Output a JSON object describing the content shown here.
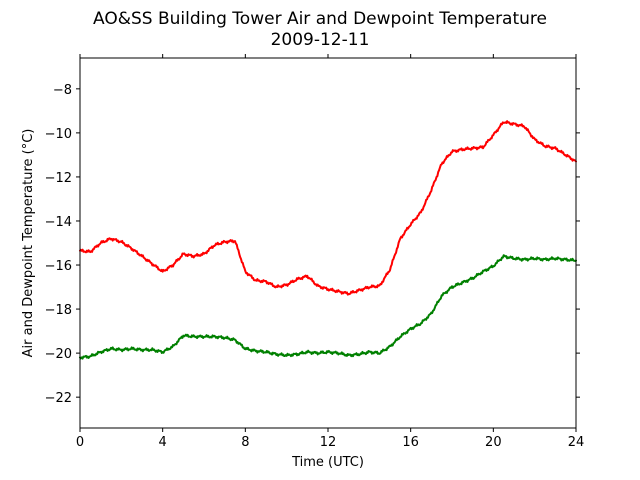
{
  "chart_data": {
    "type": "line",
    "title": "AO&SS Building Tower Air and Dewpoint Temperature",
    "subtitle": "2009-12-11",
    "xlabel": "Time (UTC)",
    "ylabel": "Air and Dewpoint Temperature (°C)",
    "xlim": [
      0,
      24
    ],
    "ylim": [
      -23.4,
      -6.6
    ],
    "xticks": [
      0,
      4,
      8,
      12,
      16,
      20,
      24
    ],
    "xtick_labels": [
      "0",
      "4",
      "8",
      "12",
      "16",
      "20",
      "24"
    ],
    "yticks": [
      -22,
      -20,
      -18,
      -16,
      -14,
      -12,
      -10,
      -8
    ],
    "ytick_labels": [
      "−22",
      "−20",
      "−18",
      "−16",
      "−14",
      "−12",
      "−10",
      "−8"
    ],
    "grid": false,
    "series": [
      {
        "color": "#ff0000",
        "points": [
          [
            0,
            -15.35
          ],
          [
            0.5,
            -15.4
          ],
          [
            1,
            -15.0
          ],
          [
            1.5,
            -14.8
          ],
          [
            2,
            -14.95
          ],
          [
            2.5,
            -15.25
          ],
          [
            3,
            -15.6
          ],
          [
            3.5,
            -15.95
          ],
          [
            4,
            -16.3
          ],
          [
            4.5,
            -16.0
          ],
          [
            5,
            -15.5
          ],
          [
            5.5,
            -15.6
          ],
          [
            6,
            -15.5
          ],
          [
            6.5,
            -15.1
          ],
          [
            7,
            -14.95
          ],
          [
            7.5,
            -14.9
          ],
          [
            8,
            -16.3
          ],
          [
            8.5,
            -16.7
          ],
          [
            9,
            -16.75
          ],
          [
            9.5,
            -17.0
          ],
          [
            10,
            -16.9
          ],
          [
            10.5,
            -16.65
          ],
          [
            11,
            -16.5
          ],
          [
            11.5,
            -16.95
          ],
          [
            12,
            -17.1
          ],
          [
            12.5,
            -17.2
          ],
          [
            13,
            -17.3
          ],
          [
            13.5,
            -17.15
          ],
          [
            14,
            -17.0
          ],
          [
            14.5,
            -16.95
          ],
          [
            15,
            -16.2
          ],
          [
            15.5,
            -14.8
          ],
          [
            16,
            -14.15
          ],
          [
            16.5,
            -13.6
          ],
          [
            17,
            -12.6
          ],
          [
            17.5,
            -11.4
          ],
          [
            18,
            -10.85
          ],
          [
            18.5,
            -10.75
          ],
          [
            19,
            -10.7
          ],
          [
            19.5,
            -10.65
          ],
          [
            20,
            -10.1
          ],
          [
            20.5,
            -9.5
          ],
          [
            21,
            -9.6
          ],
          [
            21.5,
            -9.7
          ],
          [
            22,
            -10.3
          ],
          [
            22.5,
            -10.6
          ],
          [
            23,
            -10.7
          ],
          [
            23.5,
            -11.0
          ],
          [
            24,
            -11.3
          ]
        ]
      },
      {
        "color": "#008000",
        "points": [
          [
            0,
            -20.2
          ],
          [
            0.5,
            -20.15
          ],
          [
            1,
            -19.95
          ],
          [
            1.5,
            -19.8
          ],
          [
            2,
            -19.85
          ],
          [
            2.5,
            -19.8
          ],
          [
            3,
            -19.85
          ],
          [
            3.5,
            -19.85
          ],
          [
            4,
            -19.95
          ],
          [
            4.5,
            -19.7
          ],
          [
            5,
            -19.2
          ],
          [
            5.5,
            -19.25
          ],
          [
            6,
            -19.25
          ],
          [
            6.5,
            -19.25
          ],
          [
            7,
            -19.3
          ],
          [
            7.5,
            -19.4
          ],
          [
            8,
            -19.8
          ],
          [
            8.5,
            -19.9
          ],
          [
            9,
            -19.95
          ],
          [
            9.5,
            -20.05
          ],
          [
            10,
            -20.1
          ],
          [
            10.5,
            -20.05
          ],
          [
            11,
            -19.95
          ],
          [
            11.5,
            -20.0
          ],
          [
            12,
            -19.95
          ],
          [
            12.5,
            -20.0
          ],
          [
            13,
            -20.1
          ],
          [
            13.5,
            -20.05
          ],
          [
            14,
            -19.95
          ],
          [
            14.5,
            -20.0
          ],
          [
            15,
            -19.7
          ],
          [
            15.5,
            -19.25
          ],
          [
            16,
            -18.9
          ],
          [
            16.5,
            -18.65
          ],
          [
            17,
            -18.2
          ],
          [
            17.5,
            -17.4
          ],
          [
            18,
            -17.0
          ],
          [
            18.5,
            -16.8
          ],
          [
            19,
            -16.6
          ],
          [
            19.5,
            -16.3
          ],
          [
            20,
            -16.05
          ],
          [
            20.5,
            -15.6
          ],
          [
            21,
            -15.7
          ],
          [
            21.5,
            -15.75
          ],
          [
            22,
            -15.7
          ],
          [
            22.5,
            -15.75
          ],
          [
            23,
            -15.7
          ],
          [
            23.5,
            -15.75
          ],
          [
            24,
            -15.8
          ]
        ]
      }
    ]
  }
}
